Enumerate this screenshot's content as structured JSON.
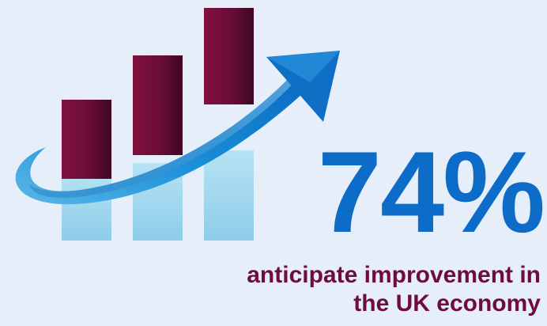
{
  "infographic": {
    "statistic": "74%",
    "caption": {
      "line1": "anticipate improvement in",
      "line2": "the UK economy"
    },
    "icons": [
      "bar-growth-icon",
      "upward-arrow-icon"
    ],
    "colors": {
      "background": "#e6eff9",
      "statistic": "#0c6cc7",
      "caption": "#6e0d3a",
      "bar_dark": "#6e0d3a",
      "bar_light": "#9fd6ec",
      "arrow": "#1288d4"
    }
  }
}
